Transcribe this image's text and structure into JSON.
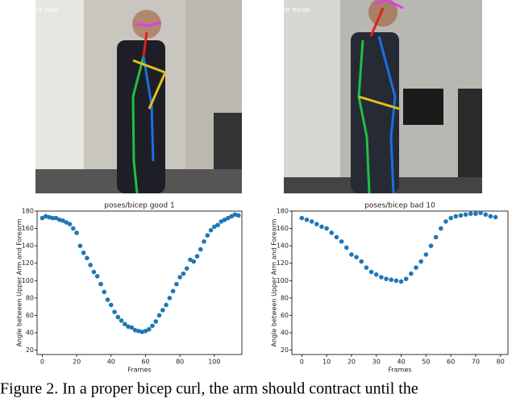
{
  "photos": [
    {
      "overlay_text": "ur help"
    },
    {
      "overlay_text": "or bicep"
    }
  ],
  "chart_data": [
    {
      "type": "scatter",
      "title": "poses/bicep good 1",
      "xlabel": "Frames",
      "ylabel": "Angle between Upper Arm and Forearm",
      "color": "#1f77b4",
      "x": [
        0,
        2,
        4,
        6,
        8,
        10,
        12,
        14,
        16,
        18,
        20,
        22,
        24,
        26,
        28,
        30,
        32,
        34,
        36,
        38,
        40,
        42,
        44,
        46,
        48,
        50,
        52,
        54,
        56,
        58,
        60,
        62,
        64,
        66,
        68,
        70,
        72,
        74,
        76,
        78,
        80,
        82,
        84,
        86,
        88,
        90,
        92,
        94,
        96,
        98,
        100,
        102,
        104,
        106,
        108,
        110,
        112,
        114
      ],
      "values": [
        172,
        174,
        173,
        172,
        172,
        170,
        169,
        167,
        165,
        160,
        155,
        140,
        132,
        126,
        118,
        110,
        105,
        96,
        87,
        78,
        72,
        64,
        58,
        54,
        50,
        47,
        46,
        43,
        42,
        41,
        42,
        44,
        48,
        53,
        60,
        66,
        72,
        80,
        88,
        96,
        104,
        108,
        114,
        124,
        122,
        128,
        136,
        145,
        152,
        158,
        162,
        164,
        168,
        170,
        172,
        174,
        176,
        175
      ],
      "xlim": [
        -3,
        116
      ],
      "ylim": [
        15,
        180
      ],
      "xticks": [
        0,
        20,
        40,
        60,
        80,
        100
      ],
      "yticks": [
        20,
        40,
        60,
        80,
        100,
        120,
        140,
        160,
        180
      ]
    },
    {
      "type": "scatter",
      "title": "poses/bicep bad 10",
      "xlabel": "Frames",
      "ylabel": "Angle between Upper Arm and Forearm",
      "color": "#1f77b4",
      "x": [
        0,
        2,
        4,
        6,
        8,
        10,
        12,
        14,
        16,
        18,
        20,
        22,
        24,
        26,
        28,
        30,
        32,
        34,
        36,
        38,
        40,
        42,
        44,
        46,
        48,
        50,
        52,
        54,
        56,
        58,
        60,
        62,
        64,
        66,
        68,
        70,
        72,
        74,
        76,
        78
      ],
      "values": [
        172,
        170,
        168,
        165,
        162,
        160,
        155,
        150,
        145,
        138,
        130,
        127,
        122,
        115,
        110,
        107,
        104,
        102,
        101,
        100,
        99,
        102,
        108,
        115,
        122,
        130,
        140,
        150,
        160,
        168,
        172,
        174,
        175,
        176,
        177,
        177,
        178,
        176,
        174,
        173
      ],
      "xlim": [
        -4,
        83
      ],
      "ylim": [
        15,
        180
      ],
      "xticks": [
        0,
        10,
        20,
        30,
        40,
        50,
        60,
        70,
        80
      ],
      "yticks": [
        20,
        40,
        60,
        80,
        100,
        120,
        140,
        160,
        180
      ]
    }
  ],
  "caption": "Figure 2. In a proper bicep curl, the arm should contract until the"
}
